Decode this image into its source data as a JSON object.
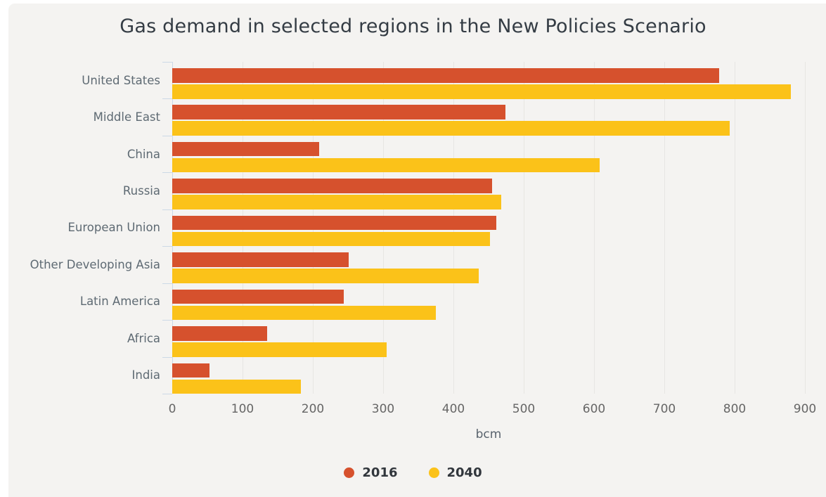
{
  "title": "Gas demand in selected regions in the New Policies Scenario",
  "chart_data": {
    "type": "bar",
    "orientation": "horizontal",
    "title": "Gas demand in selected regions in the New Policies Scenario",
    "categories": [
      "United States",
      "Middle East",
      "China",
      "Russia",
      "European Union",
      "Other Developing Asia",
      "Latin America",
      "Africa",
      "India"
    ],
    "series": [
      {
        "name": "2016",
        "color": "#d6512d",
        "values": [
          778,
          474,
          209,
          455,
          461,
          251,
          244,
          135,
          53
        ]
      },
      {
        "name": "2040",
        "color": "#fbc219",
        "values": [
          880,
          793,
          608,
          468,
          452,
          436,
          375,
          305,
          183
        ]
      }
    ],
    "xlabel": "bcm",
    "xlim": [
      0,
      900
    ],
    "xticks": [
      0,
      100,
      200,
      300,
      400,
      500,
      600,
      700,
      800,
      900
    ],
    "grid": "vertical",
    "legend_position": "bottom",
    "background_color": "#f4f3f1",
    "gridline_color": "#e7e6e3",
    "axis_color": "#ccd9e6"
  },
  "legend": {
    "items": [
      {
        "label": "2016",
        "color": "#d6512d"
      },
      {
        "label": "2040",
        "color": "#fbc219"
      }
    ]
  }
}
